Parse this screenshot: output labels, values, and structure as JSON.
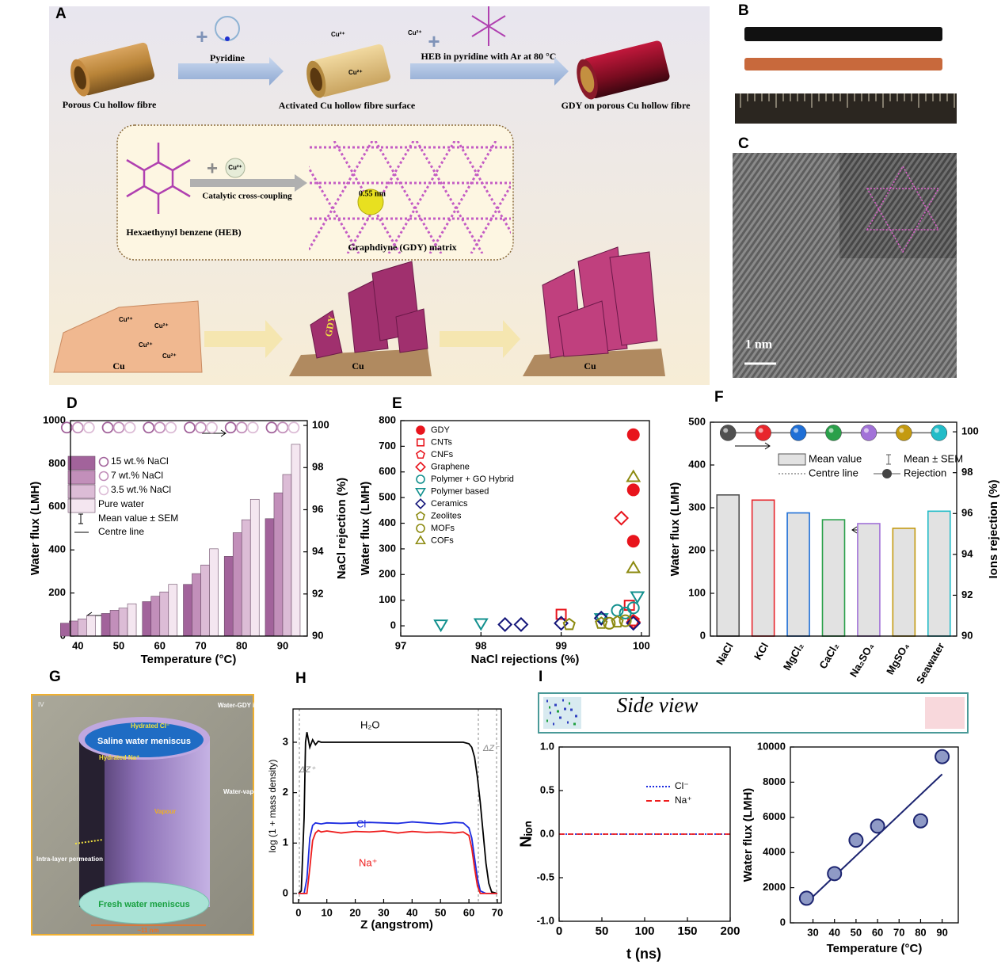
{
  "panel_labels": {
    "A": "A",
    "B": "B",
    "C": "C",
    "D": "D",
    "E": "E",
    "F": "F",
    "G": "G",
    "H": "H",
    "I": "I"
  },
  "schematic_A": {
    "hollow_fibre": "Porous Cu hollow fibre",
    "pyridine": "Pyridine",
    "activated": "Activated Cu hollow fibre surface",
    "heb_step": "HEB in pyridine with Ar at 80 °C",
    "gdy_fibre": "GDY on porous Cu hollow fibre",
    "cu_ion": "Cu²⁺",
    "catalytic": "Catalytic cross-coupling",
    "heb": "Hexaethynyl benzene (HEB)",
    "pore": "0.55 nm",
    "matrix": "Graphdiyne (GDY) matrix",
    "cu": "Cu",
    "gdy": "GDY"
  },
  "image_C": {
    "scale": "1 nm"
  },
  "schematic_G": {
    "panel_tag": "IV",
    "water_gdy": "Water-GDY interface",
    "hydrated_cl": "Hydrated Cl⁻",
    "meniscus": "Saline water meniscus",
    "hydrated_na": "Hydrated Na⁺",
    "vapour_iface": "Water-vapour interface",
    "vapour": "Vapour",
    "intra": "Intra-layer permeation",
    "fresh": "Fresh water meniscus",
    "width": "~11 nm"
  },
  "side_view": "Side view",
  "chart_data": [
    {
      "type": "bar",
      "xlabel": "Temperature (°C)",
      "ylabel": "Water flux (LMH)",
      "y2label": "NaCl rejection (%)",
      "x": [
        40,
        50,
        60,
        70,
        80,
        90
      ],
      "xlim": [
        38.2,
        96
      ],
      "xticks": [
        40,
        50,
        60,
        70,
        80,
        90
      ],
      "ylim": [
        0,
        1000
      ],
      "yticks": [
        0,
        200,
        400,
        600,
        800,
        1000
      ],
      "y2lim": [
        90,
        100.23
      ],
      "y2ticks": [
        90,
        92,
        94,
        96,
        98,
        100
      ],
      "series": [
        {
          "name": "15 wt.% NaCl",
          "color": "#a2639b",
          "values": [
            60,
            105,
            160,
            240,
            370,
            545
          ],
          "rejection": [
            99.9,
            99.9,
            99.9,
            99.9,
            99.9,
            99.9
          ]
        },
        {
          "name": "7 wt.% NaCl",
          "color": "#c28fba",
          "values": [
            70,
            120,
            185,
            290,
            480,
            665
          ],
          "rejection": [
            99.9,
            99.9,
            99.9,
            99.9,
            99.9,
            99.9
          ]
        },
        {
          "name": "3.5 wt.% NaCl",
          "color": "#dcbcd6",
          "values": [
            80,
            130,
            205,
            330,
            540,
            750
          ],
          "rejection": [
            99.9,
            99.9,
            99.9,
            99.9,
            99.9,
            99.9
          ]
        },
        {
          "name": "Pure water",
          "color": "#f4e6f0",
          "values": [
            95,
            150,
            240,
            405,
            635,
            890
          ]
        }
      ],
      "legend_extra": [
        "Mean value ± SEM",
        "Centre line"
      ]
    },
    {
      "type": "scatter",
      "xlabel": "NaCl rejections (%)",
      "ylabel": "Water flux (LMH)",
      "xlim": [
        97,
        100.1
      ],
      "xticks": [
        97,
        98,
        99,
        100
      ],
      "ylim": [
        -40,
        800
      ],
      "yticks": [
        0,
        100,
        200,
        300,
        400,
        500,
        600,
        700,
        800
      ],
      "legend": true,
      "series": [
        {
          "name": "GDY",
          "color": "#e8141c",
          "marker": "circle",
          "filled": true,
          "x": [
            99.9,
            99.9,
            99.9
          ],
          "values": [
            745,
            530,
            330
          ]
        },
        {
          "name": "CNTs",
          "color": "#e8141c",
          "marker": "square",
          "filled": false,
          "x": [
            99.0,
            99.85
          ],
          "values": [
            45,
            80
          ]
        },
        {
          "name": "CNFs",
          "color": "#e8141c",
          "marker": "pentagon",
          "filled": false,
          "x": [
            99.9
          ],
          "values": [
            20
          ]
        },
        {
          "name": "Graphene",
          "color": "#e8141c",
          "marker": "diamond",
          "filled": false,
          "x": [
            99.75,
            99.9
          ],
          "values": [
            420,
            15
          ]
        },
        {
          "name": "Polymer + GO Hybrid",
          "color": "#12908e",
          "marker": "circle",
          "filled": false,
          "x": [
            99.7,
            99.8,
            99.9
          ],
          "values": [
            60,
            50,
            70
          ]
        },
        {
          "name": "Polymer based",
          "color": "#12908e",
          "marker": "triangle-down",
          "filled": false,
          "x": [
            97.5,
            98.0,
            99.5,
            99.95
          ],
          "values": [
            5,
            10,
            30,
            115
          ]
        },
        {
          "name": "Ceramics",
          "color": "#14167a",
          "marker": "diamond",
          "filled": false,
          "x": [
            98.3,
            98.5,
            99.0,
            99.5,
            99.9
          ],
          "values": [
            5,
            5,
            10,
            30,
            10
          ]
        },
        {
          "name": "Zeolites",
          "color": "#8c8a10",
          "marker": "pentagon",
          "filled": false,
          "x": [
            99.1,
            99.5,
            99.7
          ],
          "values": [
            5,
            10,
            15
          ]
        },
        {
          "name": "MOFs",
          "color": "#8c8a10",
          "marker": "circle",
          "filled": false,
          "x": [
            99.6,
            99.8
          ],
          "values": [
            10,
            20
          ]
        },
        {
          "name": "COFs",
          "color": "#8c8a10",
          "marker": "triangle-up",
          "filled": false,
          "x": [
            99.9,
            99.9
          ],
          "values": [
            580,
            225
          ]
        }
      ]
    },
    {
      "type": "bar",
      "ylabel": "Water flux (LMH)",
      "y2label": "Ions rejection (%)",
      "categories": [
        "NaCl",
        "KCl",
        "MgCl₂",
        "CaCl₂",
        "Na₂SO₄",
        "MgSO₄",
        "Seawater"
      ],
      "values": [
        330,
        318,
        288,
        272,
        263,
        252,
        292
      ],
      "colors": [
        "#505050",
        "#e8262c",
        "#1f6fd6",
        "#2aa04a",
        "#a272d8",
        "#c49a10",
        "#22bcc8"
      ],
      "rejection": [
        99.95,
        99.95,
        99.95,
        99.95,
        99.95,
        99.95,
        99.95
      ],
      "ylim": [
        0,
        500
      ],
      "yticks": [
        0,
        100,
        200,
        300,
        400,
        500
      ],
      "y2lim": [
        90,
        100.47
      ],
      "y2ticks": [
        90,
        92,
        94,
        96,
        98,
        100
      ],
      "legend_items": [
        "Mean value",
        "Mean ± SEM",
        "Centre line",
        "Rejection"
      ]
    },
    {
      "type": "line",
      "xlabel": "Z (angstrom)",
      "ylabel": "log (1 + mass density)",
      "xlim": [
        -1.9,
        71.4
      ],
      "xticks": [
        0,
        10,
        20,
        30,
        40,
        50,
        60,
        70
      ],
      "ylim": [
        -0.19,
        3.66
      ],
      "yticks": [
        0,
        1,
        2,
        3
      ],
      "annotations": [
        "ΔZ⁺",
        "ΔZ⁻"
      ],
      "series": [
        {
          "name": "H₂O",
          "color": "#000000",
          "x": [
            0,
            1,
            2,
            2.5,
            3,
            3.5,
            4,
            5,
            6,
            7,
            8,
            10,
            20,
            30,
            40,
            50,
            58,
            60,
            61,
            62,
            63,
            64,
            65,
            66,
            67,
            68,
            70
          ],
          "values": [
            0,
            0.05,
            1.5,
            3.0,
            3.2,
            3.05,
            2.9,
            3.05,
            2.95,
            3.02,
            3.0,
            3.0,
            3.0,
            3.0,
            3.0,
            3.0,
            3.0,
            2.97,
            2.9,
            2.7,
            2.3,
            1.8,
            1.2,
            0.6,
            0.2,
            0.03,
            0
          ]
        },
        {
          "name": "Cl⁻",
          "color": "#1c2be0",
          "x": [
            0,
            2,
            3,
            4,
            5,
            6,
            8,
            10,
            15,
            20,
            25,
            30,
            35,
            40,
            45,
            50,
            55,
            58,
            60,
            61,
            62,
            63,
            64,
            66,
            70
          ],
          "values": [
            0,
            0,
            0.3,
            1.1,
            1.35,
            1.4,
            1.38,
            1.4,
            1.39,
            1.4,
            1.41,
            1.4,
            1.39,
            1.42,
            1.4,
            1.38,
            1.41,
            1.4,
            1.3,
            1.1,
            0.7,
            0.3,
            0.05,
            0,
            0
          ]
        },
        {
          "name": "Na⁺",
          "color": "#ee1c1c",
          "x": [
            0,
            3,
            4,
            5,
            6,
            7,
            8,
            10,
            15,
            20,
            25,
            30,
            35,
            40,
            45,
            50,
            55,
            58,
            60,
            61,
            62,
            63,
            64,
            70
          ],
          "values": [
            0,
            0,
            0.5,
            1.05,
            1.2,
            1.25,
            1.22,
            1.24,
            1.2,
            1.23,
            1.22,
            1.24,
            1.2,
            1.23,
            1.21,
            1.22,
            1.2,
            1.22,
            1.15,
            0.9,
            0.5,
            0.15,
            0,
            0
          ]
        }
      ]
    },
    {
      "type": "line",
      "xlabel": "t (ns)",
      "ylabel": "Nᵢₒₙ",
      "xlim": [
        0,
        200
      ],
      "xticks": [
        0,
        50,
        100,
        150,
        200
      ],
      "ylim": [
        -1,
        1
      ],
      "yticks": [
        {
          "value": -1,
          "label": "-1.0"
        },
        -0.5,
        {
          "value": 0,
          "label": "0.0"
        },
        0.5,
        {
          "value": 1,
          "label": "1.0"
        }
      ],
      "legend": true,
      "series": [
        {
          "name": "Cl⁻",
          "color": "#1c2be0",
          "style": "dotted",
          "x": [
            0,
            200
          ],
          "values": [
            0,
            0
          ]
        },
        {
          "name": "Na⁺",
          "color": "#ee1c1c",
          "style": "dashed",
          "x": [
            0,
            200
          ],
          "values": [
            0,
            0
          ]
        }
      ]
    },
    {
      "type": "scatter",
      "xlabel": "Temperature (°C)",
      "ylabel": "Water flux (LMH)",
      "xlim": [
        19.5,
        97.5
      ],
      "xticks": [
        30,
        40,
        50,
        60,
        70,
        80,
        90
      ],
      "ylim": [
        0,
        10000
      ],
      "yticks": [
        0,
        2000,
        4000,
        6000,
        8000,
        10000
      ],
      "series": [
        {
          "color": "#8f9ac6",
          "edge": "#1c2470",
          "marker": "circle",
          "filled": true,
          "x": [
            27,
            40,
            50,
            60,
            80,
            90
          ],
          "values": [
            1400,
            2800,
            4700,
            5500,
            5800,
            9450
          ]
        }
      ],
      "fit": {
        "color": "#1c2470",
        "x": [
          27,
          90
        ],
        "values": [
          1150,
          8450
        ]
      }
    }
  ]
}
